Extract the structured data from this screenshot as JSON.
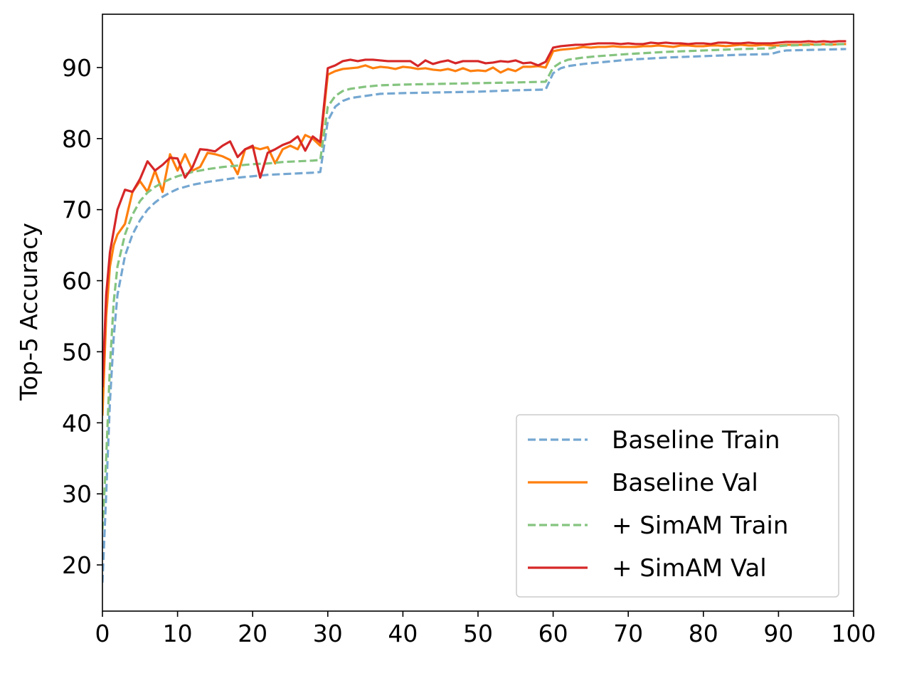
{
  "chart_data": {
    "type": "line",
    "title": "",
    "xlabel": "",
    "ylabel": "Top-5 Accuracy",
    "xlim": [
      0,
      100
    ],
    "ylim": [
      13.5,
      97.5
    ],
    "xticks": [
      0,
      10,
      20,
      30,
      40,
      50,
      60,
      70,
      80,
      90,
      100
    ],
    "yticks": [
      20,
      30,
      40,
      50,
      60,
      70,
      80,
      90
    ],
    "grid": false,
    "legend_position": "lower-right",
    "series": [
      {
        "name": "Baseline Train",
        "style": "dashed",
        "color": "#75a7d1",
        "x": [
          0,
          0.5,
          1,
          1.5,
          2,
          3,
          4,
          5,
          6,
          7,
          8,
          9,
          10,
          12,
          14,
          16,
          18,
          20,
          22,
          24,
          26,
          28,
          29,
          30,
          31,
          32,
          33,
          35,
          37,
          40,
          45,
          50,
          55,
          59,
          60,
          61,
          62,
          64,
          66,
          70,
          75,
          80,
          85,
          89,
          90,
          91,
          95,
          99
        ],
        "y": [
          17.5,
          30,
          43,
          52,
          58,
          63.5,
          66.5,
          68.5,
          70,
          71,
          71.8,
          72.4,
          72.9,
          73.5,
          73.9,
          74.2,
          74.5,
          74.7,
          74.9,
          75,
          75.1,
          75.2,
          75.3,
          82.5,
          84.5,
          85.3,
          85.7,
          86,
          86.3,
          86.4,
          86.5,
          86.6,
          86.8,
          86.9,
          89.2,
          89.9,
          90.2,
          90.5,
          90.7,
          91.1,
          91.4,
          91.6,
          91.8,
          91.9,
          92.2,
          92.4,
          92.5,
          92.6
        ]
      },
      {
        "name": "Baseline Val",
        "style": "solid",
        "color": "#ff7f0e",
        "x": [
          0,
          0.5,
          1,
          1.5,
          2,
          3,
          4,
          5,
          6,
          7,
          8,
          9,
          10,
          11,
          12,
          13,
          14,
          15,
          16,
          17,
          18,
          19,
          20,
          21,
          22,
          23,
          24,
          25,
          26,
          27,
          28,
          29,
          30,
          31,
          32,
          33,
          34,
          35,
          36,
          37,
          38,
          39,
          40,
          41,
          42,
          43,
          44,
          45,
          46,
          47,
          48,
          49,
          50,
          51,
          52,
          53,
          54,
          55,
          56,
          57,
          58,
          59,
          60,
          61,
          62,
          63,
          64,
          65,
          66,
          67,
          68,
          69,
          70,
          71,
          72,
          73,
          74,
          75,
          76,
          77,
          78,
          79,
          80,
          81,
          82,
          83,
          84,
          85,
          86,
          87,
          88,
          89,
          90,
          91,
          92,
          93,
          94,
          95,
          96,
          97,
          98,
          99
        ],
        "y": [
          41,
          55,
          62,
          65,
          66.5,
          68,
          72.5,
          74,
          72.5,
          75.5,
          72.5,
          77.8,
          75.5,
          77.8,
          75.5,
          76,
          78,
          77.8,
          77.5,
          77,
          75,
          78.5,
          78.8,
          78.5,
          78.8,
          76.5,
          78.5,
          79,
          78.5,
          80.5,
          80,
          79,
          89,
          89.5,
          89.8,
          89.9,
          90,
          90.3,
          89.9,
          90.1,
          90,
          89.8,
          90.1,
          90,
          89.8,
          89.9,
          89.7,
          89.6,
          89.8,
          89.5,
          89.9,
          89.5,
          89.6,
          89.5,
          90,
          89.3,
          89.8,
          89.5,
          90.1,
          90.1,
          90.2,
          90,
          92.3,
          92.5,
          92.6,
          92.7,
          92.9,
          92.8,
          92.9,
          92.9,
          93,
          92.9,
          92.9,
          92.9,
          93,
          93,
          93.1,
          93,
          92.9,
          93.1,
          93.1,
          93,
          93,
          93.1,
          93.1,
          93,
          93.1,
          93.2,
          93.1,
          93.1,
          93.2,
          93.1,
          93.1,
          93.2,
          93.2,
          93.2,
          93.3,
          93.2,
          93.3,
          93.2,
          93.3,
          93.3
        ]
      },
      {
        "name": "+ SimAM Train",
        "style": "dashed",
        "color": "#85c47f",
        "x": [
          0,
          0.5,
          1,
          1.5,
          2,
          3,
          4,
          5,
          6,
          7,
          8,
          9,
          10,
          12,
          14,
          16,
          18,
          20,
          22,
          24,
          26,
          28,
          29,
          30,
          31,
          32,
          33,
          35,
          37,
          40,
          45,
          50,
          55,
          59,
          60,
          61,
          62,
          64,
          66,
          70,
          75,
          80,
          85,
          89,
          90,
          91,
          95,
          99
        ],
        "y": [
          25,
          35,
          48,
          57,
          62,
          66.5,
          69.3,
          71.2,
          72.4,
          73.2,
          73.8,
          74.3,
          74.7,
          75.3,
          75.7,
          76,
          76.2,
          76.4,
          76.5,
          76.7,
          76.8,
          76.9,
          77,
          84.5,
          86,
          86.7,
          87,
          87.3,
          87.5,
          87.6,
          87.7,
          87.8,
          87.9,
          88,
          90,
          90.7,
          91.1,
          91.4,
          91.6,
          91.9,
          92.2,
          92.4,
          92.6,
          92.7,
          93,
          93.1,
          93.2,
          93.3
        ]
      },
      {
        "name": "+ SimAM Val",
        "style": "solid",
        "color": "#d62728",
        "x": [
          0,
          0.5,
          1,
          1.5,
          2,
          3,
          4,
          5,
          6,
          7,
          8,
          9,
          10,
          11,
          12,
          13,
          14,
          15,
          16,
          17,
          18,
          19,
          20,
          21,
          22,
          23,
          24,
          25,
          26,
          27,
          28,
          29,
          30,
          31,
          32,
          33,
          34,
          35,
          36,
          37,
          38,
          39,
          40,
          41,
          42,
          43,
          44,
          45,
          46,
          47,
          48,
          49,
          50,
          51,
          52,
          53,
          54,
          55,
          56,
          57,
          58,
          59,
          60,
          61,
          62,
          63,
          64,
          65,
          66,
          67,
          68,
          69,
          70,
          71,
          72,
          73,
          74,
          75,
          76,
          77,
          78,
          79,
          80,
          81,
          82,
          83,
          84,
          85,
          86,
          87,
          88,
          89,
          90,
          91,
          92,
          93,
          94,
          95,
          96,
          97,
          98,
          99
        ],
        "y": [
          45,
          58,
          64,
          67,
          70,
          72.8,
          72.5,
          74.3,
          76.8,
          75.5,
          76.3,
          77.3,
          77.2,
          74.5,
          76,
          78.5,
          78.4,
          78.2,
          79,
          79.6,
          77.4,
          78.5,
          79,
          74.5,
          78,
          78.5,
          79.1,
          79.5,
          80.3,
          78.3,
          80.3,
          79.5,
          89.9,
          90.3,
          90.9,
          91.1,
          90.9,
          91.1,
          91.1,
          91,
          90.9,
          90.9,
          90.9,
          90.9,
          90.2,
          91,
          90.5,
          90.8,
          91,
          90.6,
          90.9,
          90.9,
          90.9,
          90.6,
          90.7,
          90.9,
          90.8,
          91,
          90.6,
          90.7,
          90.3,
          90.8,
          92.8,
          93,
          93.1,
          93.2,
          93.2,
          93.3,
          93.4,
          93.4,
          93.4,
          93.3,
          93.4,
          93.3,
          93.3,
          93.5,
          93.4,
          93.5,
          93.4,
          93.4,
          93.3,
          93.4,
          93.4,
          93.3,
          93.5,
          93.5,
          93.4,
          93.4,
          93.5,
          93.4,
          93.4,
          93.4,
          93.5,
          93.6,
          93.6,
          93.6,
          93.7,
          93.6,
          93.7,
          93.6,
          93.7,
          93.7
        ]
      }
    ]
  }
}
